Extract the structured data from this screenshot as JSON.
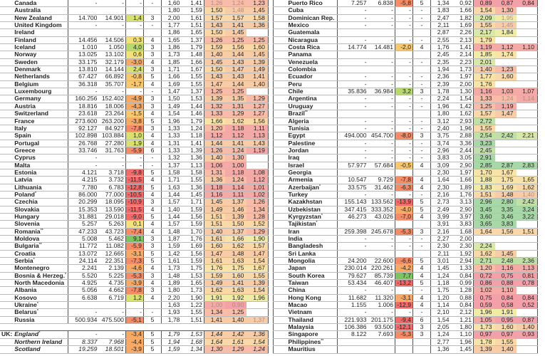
{
  "colors": {
    "strong_neg": "#f26b6b",
    "neg": "#f48c68",
    "mild_neg": "#f7aa66",
    "near_zero": "#f3e27a",
    "pos": "#d8e070",
    "strong_pos": "#7cc460",
    "low_tfr": "#f4a0a8",
    "mid_tfr": "#fad8a8",
    "high_tfr": "#a8d8a8"
  },
  "left": [
    [
      "",
      "Canada",
      "",
      "-",
      "-",
      "-",
      "-",
      "1,60",
      "1,41",
      "1,26",
      "1,24",
      "1,23",
      [
        9,
        10
      ]
    ],
    [
      "",
      "Australia",
      "",
      "",
      "",
      "",
      "",
      "1,80",
      "1,59",
      "1,50",
      "1,48",
      "1,45",
      [
        10
      ]
    ],
    [
      "",
      "New Zealand",
      "",
      "14.700",
      "14.901",
      "1,4",
      "3",
      "2,00",
      "1,61",
      "1,57",
      "1,57",
      "1,58",
      []
    ],
    [
      "",
      "United Kingdom",
      "",
      "-",
      "-",
      "-",
      "-",
      "1,77",
      "1,51",
      "1,43",
      "1,41",
      "1,36",
      []
    ],
    [
      "",
      "Ireland",
      "",
      "",
      "",
      "",
      "",
      "1,86",
      "1,65",
      "1,50",
      "1,45",
      "",
      []
    ],
    [
      "",
      "Finland",
      "",
      "14.456",
      "14.506",
      "0,3",
      "4",
      "1,65",
      "1,37",
      "1,26",
      "1,25",
      "1,25",
      []
    ],
    [
      "",
      "Iceland",
      "",
      "1.010",
      "1.050",
      "4,0",
      "3",
      "1,86",
      "1,79",
      "1,59",
      "1,56",
      "1,60",
      []
    ],
    [
      "",
      "Norway",
      "",
      "13.025",
      "13.102",
      "0,6",
      "3",
      "1,73",
      "1,48",
      "1,40",
      "1,44",
      "1,45",
      []
    ],
    [
      "",
      "Sweden",
      "",
      "33.175",
      "32.179",
      "-3,0",
      "4",
      "1,85",
      "1,66",
      "1,45",
      "1,43",
      "1,39",
      []
    ],
    [
      "",
      "Denmark",
      "",
      "13.810",
      "14.144",
      "2,4",
      "3",
      "1,71",
      "1,67",
      "1,50",
      "1,47",
      "1,49",
      []
    ],
    [
      "",
      "Netherlands",
      "",
      "67.427",
      "66.892",
      "-0,8",
      "5",
      "1,66",
      "1,55",
      "1,43",
      "1,43",
      "1,41",
      []
    ],
    [
      "",
      "Belgium",
      "",
      "36.318",
      "35.707",
      "-1,7",
      "4",
      "1,69",
      "1,55",
      "1,47",
      "1,44",
      "1,40",
      []
    ],
    [
      "",
      "Luxembourg",
      "",
      "-",
      "-",
      "-",
      "-",
      "1,47",
      "1,37",
      "1,25",
      "1,25",
      "",
      []
    ],
    [
      "",
      "Germany",
      "",
      "160.256",
      "152.402",
      "-4,9",
      "3",
      "1,50",
      "1,53",
      "1,39",
      "1,35",
      "1,29",
      []
    ],
    [
      "",
      "Austria",
      "",
      "18.816",
      "18.006",
      "-4,3",
      "3",
      "1,49",
      "1,44",
      "1,32",
      "1,31",
      "1,27",
      []
    ],
    [
      "",
      "Switzerland",
      "",
      "23.618",
      "23.264",
      "-1,5",
      "4",
      "1,54",
      "1,46",
      "1,33",
      "1,29",
      "1,27",
      []
    ],
    [
      "",
      "France",
      "",
      "273.600",
      "263.200",
      "-3,8",
      "5",
      "1,96",
      "1,79",
      "1,66",
      "1,62",
      "1,56",
      []
    ],
    [
      "",
      "Italy",
      "",
      "92.127",
      "84.927",
      "-7,8",
      "3",
      "1,33",
      "1,24",
      "1,20",
      "1,18",
      "1,11",
      []
    ],
    [
      "",
      "Spain",
      "",
      "102.898",
      "103.884",
      "1,0",
      "4",
      "1,33",
      "1,18",
      "1,12",
      "1,12",
      "1,13",
      []
    ],
    [
      "",
      "Portugal",
      "",
      "26.768",
      "27.280",
      "1,9",
      "4",
      "1,31",
      "1,41",
      "1,44",
      "1,41",
      "1,43",
      []
    ],
    [
      "",
      "Greece",
      "",
      "33.746",
      "31.763",
      "-5,9",
      "6",
      "1,33",
      "1,39",
      "1,26",
      "1,24",
      "1,19",
      []
    ],
    [
      "",
      "Cyprus",
      "",
      "-",
      "-",
      "-",
      "-",
      "1,32",
      "1,36",
      "1,40",
      "1,30",
      "",
      []
    ],
    [
      "",
      "Malta",
      "",
      "-",
      "-",
      "-",
      "-",
      "1,37",
      "1,13",
      "1,06",
      "1,00",
      "",
      []
    ],
    [
      "",
      "Estonia",
      "",
      "4.121",
      "3.718",
      "-9,8",
      "5",
      "1,58",
      "1,58",
      "1,31",
      "1,18",
      "1,08",
      []
    ],
    [
      "",
      "Latvia",
      "",
      "4.215",
      "3.732",
      "-11,5",
      "4",
      "1,71",
      "1,55",
      "1,36",
      "1,24",
      "1,12",
      []
    ],
    [
      "",
      "Lithuania",
      "",
      "7.780",
      "6.783",
      "-12,8",
      "5",
      "1,63",
      "1,36",
      "1,18",
      "1,14",
      "1,01",
      []
    ],
    [
      "",
      "Poland",
      "°",
      "86.000",
      "77.000",
      "-10,5",
      "4",
      "1,44",
      "1,45",
      "1,16",
      "1,11",
      "1,02",
      []
    ],
    [
      "",
      "Czechia",
      "",
      "20.299",
      "18.095",
      "-10,9",
      "3",
      "1,57",
      "1,71",
      "1,45",
      "1,37",
      "1,26",
      []
    ],
    [
      "",
      "Slovakia",
      "",
      "15.353",
      "13.590",
      "-11,5",
      "4",
      "1,40",
      "1,59",
      "1,49",
      "1,46",
      "1,34",
      []
    ],
    [
      "",
      "Hungary",
      "",
      "31.881",
      "29.018",
      "-9,0",
      "5",
      "1,44",
      "1,56",
      "1,51",
      "1,39",
      "1,28",
      []
    ],
    [
      "",
      "Slovenia",
      "",
      "5.257",
      "5.263",
      "0,1",
      "4",
      "1,57",
      "1,59",
      "1,51",
      "1,50",
      "1,52",
      []
    ],
    [
      "",
      "Romania",
      "°°",
      "47.233",
      "43.723",
      "-7,4",
      "4",
      "1,48",
      "1,70",
      "1,40",
      "1,37",
      "1,29",
      []
    ],
    [
      "",
      "Moldova",
      "",
      "5.008",
      "5.462",
      "9,1",
      "3",
      "1,87",
      "1,76",
      "1,61",
      "1,66",
      "1,90",
      []
    ],
    [
      "",
      "Bulgaria",
      "°°",
      "11.772",
      "11.082",
      "-5,9",
      "3",
      "1,59",
      "1,69",
      "1,60",
      "1,62",
      "1,57",
      []
    ],
    [
      "",
      "Croatia",
      "",
      "13.072",
      "12.665",
      "-3,1",
      "5",
      "1,42",
      "1,56",
      "1,47",
      "1,48",
      "1,47",
      []
    ],
    [
      "",
      "Serbia",
      "°",
      "24.114",
      "22.351",
      "-7,3",
      "5",
      "1,61",
      "1,59",
      "1,61",
      "1,63",
      "1,54",
      []
    ],
    [
      "",
      "Montenegro",
      "",
      "2.241",
      "2.139",
      "-4,6",
      "4",
      "1,73",
      "1,75",
      "1,76",
      "1,75",
      "1,67",
      []
    ],
    [
      "",
      "Bosnia & Herzeg.",
      "°",
      "5.520",
      "5.225",
      "-5,3",
      "3",
      "1,48",
      "1,53",
      "1,59",
      "1,60",
      "1,55",
      []
    ],
    [
      "",
      "North Macedonia",
      "",
      "4.925",
      "4.735",
      "-3,9",
      "4",
      "1,89",
      "1,65",
      "1,49",
      "1,41",
      "1,39",
      []
    ],
    [
      "",
      "Albania",
      "",
      "5.056",
      "4.662",
      "-7,8",
      "3",
      "1,80",
      "1,73",
      "1,62",
      "1,63",
      "1,54",
      []
    ],
    [
      "",
      "Kosovo",
      "",
      "6.638",
      "6.719",
      "1,2",
      "4",
      "2,20",
      "1,90",
      "1,91",
      "1,92",
      "1,96",
      []
    ],
    [
      "",
      "Ukraine",
      "°",
      "",
      "",
      "",
      "",
      "1,63",
      "1,22",
      "1,00",
      "0,90",
      "",
      [
        9,
        10
      ]
    ],
    [
      "",
      "Belarus",
      "°",
      "-",
      "-",
      "-",
      "-",
      "1,93",
      "1,55",
      "1,34",
      "1,25",
      "",
      []
    ],
    [
      "",
      "Russia",
      "",
      "500.934",
      "475.500",
      "-5,1",
      "5",
      "1,78",
      "1,51",
      "1,41",
      "1,40",
      "1,37",
      [
        11
      ]
    ],
    null,
    [
      "UK:",
      "England",
      "°",
      "-",
      "-",
      "-3,4",
      "5",
      "1,79",
      "1,53",
      "1,44",
      "1,42",
      "1,36",
      [],
      true
    ],
    [
      "",
      "Northern Ireland",
      "",
      "8.337",
      "7.968",
      "-4,4",
      "5",
      "1,94",
      "1,68",
      "1,64",
      "1,61",
      "1,54",
      [],
      true
    ],
    [
      "",
      "Scotland",
      "",
      "19.259",
      "18.501",
      "-3,9",
      "5",
      "1,59",
      "1,34",
      "1,30",
      "1,29",
      "1,24",
      [],
      true
    ]
  ],
  "right": [
    [
      "",
      "Puerto Rico",
      "",
      "7.257",
      "6.838",
      "-5,8",
      "5",
      "1,34",
      "0,92",
      "0,89",
      "0,87",
      "0,84",
      []
    ],
    [
      "",
      "Cuba",
      "",
      "-",
      "-",
      "-",
      "-",
      "1,83",
      "1,66",
      "1,54",
      "1,30",
      "",
      []
    ],
    [
      "",
      "Dominican Rep.",
      "",
      "-",
      "-",
      "-",
      "-",
      "2,47",
      "1,82",
      "2,09",
      "1,95",
      "",
      [
        10
      ]
    ],
    [
      "",
      "Mexico",
      "",
      "-",
      "-",
      "-",
      "-",
      "2,11",
      "1,69",
      "1,55",
      "1,45",
      "",
      [
        10
      ]
    ],
    [
      "",
      "Guatemala",
      "",
      "",
      "",
      "",
      "",
      "2,87",
      "2,26",
      "2,17",
      "1,84",
      "",
      []
    ],
    [
      "",
      "Nicaragua",
      "",
      "-",
      "-",
      "-",
      "-",
      "2,55",
      "2,13",
      "1,79",
      "",
      "",
      []
    ],
    [
      "",
      "Costa Rica",
      "",
      "14.774",
      "14.481",
      "-2,0",
      "4",
      "1,76",
      "1,41",
      "1,19",
      "1,12",
      "1,10",
      []
    ],
    [
      "",
      "Panama",
      "",
      "",
      "",
      "",
      "",
      "2,45",
      "2,14",
      "1,85",
      "1,74",
      "",
      []
    ],
    [
      "",
      "Venezuela",
      "",
      "-",
      "-",
      "-",
      "-",
      "2,35",
      "2,23",
      "2,01",
      "",
      "",
      []
    ],
    [
      "",
      "Colombia",
      "",
      "",
      "",
      "",
      "",
      "1,94",
      "1,73",
      "1,40",
      "1,23",
      "",
      []
    ],
    [
      "",
      "Ecuador",
      "",
      "-",
      "-",
      "-",
      "-",
      "2,36",
      "1,97",
      "1,77",
      "1,60",
      "",
      []
    ],
    [
      "",
      "Peru",
      "",
      "-",
      "-",
      "-",
      "-",
      "2,39",
      "2,00",
      "1,76",
      "",
      "",
      []
    ],
    [
      "",
      "Chile",
      "",
      "35.836",
      "36.984",
      "3,2",
      "3",
      "1,78",
      "1,30",
      "1,16",
      "1,03",
      "1,07",
      []
    ],
    [
      "",
      "Argentina",
      "",
      "-",
      "-",
      "-",
      "-",
      "2,24",
      "1,54",
      "1,33",
      "1,24",
      "1,14",
      [
        10,
        11
      ]
    ],
    [
      "",
      "Uruguay",
      "",
      "-",
      "-",
      "-",
      "-",
      "1,96",
      "1,42",
      "1,25",
      "1,19",
      "",
      []
    ],
    [
      "",
      "Brazil",
      "°°",
      "",
      "",
      "",
      "",
      "1,80",
      "1,62",
      "1,57",
      "1,47",
      "",
      []
    ],
    [
      "",
      "Algeria",
      "",
      "-",
      "-",
      "-",
      "-",
      "3,12",
      "2,93",
      "2,72",
      "",
      "",
      []
    ],
    [
      "",
      "Tunisia",
      "",
      "-",
      "-",
      "-",
      "-",
      "2,40",
      "1,96",
      "1,55",
      "",
      "",
      []
    ],
    [
      "",
      "Egypt",
      "",
      "494.000",
      "454.700",
      "-8,0",
      "3",
      "3,75",
      "2,88",
      "2,54",
      "2,42",
      "2,21",
      []
    ],
    [
      "",
      "Palestine",
      "",
      "-",
      "-",
      "-",
      "-",
      "3,74",
      "3,36",
      "3,23",
      "",
      "",
      []
    ],
    [
      "",
      "Jordan",
      "",
      "-",
      "-",
      "-",
      "-",
      "2,96",
      "2,44",
      "2,45",
      "",
      "",
      []
    ],
    [
      "",
      "Iraq",
      "",
      "-",
      "-",
      "-",
      "-",
      "3,83",
      "3,05",
      "2,91",
      "",
      "",
      []
    ],
    [
      "",
      "Israel",
      "",
      "57.977",
      "57.684",
      "-0,5",
      "4",
      "3,09",
      "2,90",
      "2,85",
      "2,87",
      "2,83",
      []
    ],
    [
      "",
      "Georgia",
      "",
      "",
      "",
      "",
      "",
      "2,30",
      "1,97",
      "1,70",
      "1,67",
      "",
      []
    ],
    [
      "",
      "Armenia",
      "",
      "10.547",
      "9.729",
      "-7,8",
      "4",
      "1,64",
      "1,66",
      "1,88",
      "1,75",
      "1,65",
      []
    ],
    [
      "",
      "Azerbaijan",
      "°",
      "33.575",
      "31.462",
      "-6,3",
      "4",
      "2,30",
      "1,89",
      "1,83",
      "1,69",
      "1,62",
      []
    ],
    [
      "",
      "Turkey",
      "",
      "-",
      "-",
      "-",
      "-",
      "2,16",
      "1,76",
      "1,51",
      "1,48",
      "1,40",
      [
        11
      ]
    ],
    [
      "",
      "Kazakhstan",
      "",
      "155.143",
      "133.562",
      "-13,9",
      "5",
      "2,73",
      "3,13",
      "2,96",
      "2,80",
      "2,42",
      []
    ],
    [
      "",
      "Uzbekistan",
      "",
      "347.415",
      "333.352",
      "-4,0",
      "5",
      "2,49",
      "2,90",
      "3,45",
      "3,35",
      "3,24",
      []
    ],
    [
      "",
      "Kyrgyzstan",
      "°",
      "46.273",
      "43.026",
      "-7,0",
      "4",
      "3,99",
      "3,97",
      "3,60",
      "3,46",
      "3,22",
      []
    ],
    [
      "",
      "Tajikistan",
      "°",
      "",
      "",
      "",
      "",
      "3,91",
      "3,83",
      "3,65",
      "3,83",
      "",
      []
    ],
    [
      "",
      "Iran",
      "",
      "259.398",
      "245.678",
      "-5,3",
      "3",
      "2,16",
      "1,68",
      "1,64",
      "1,56",
      "1,51",
      []
    ],
    [
      "",
      "India",
      "",
      "-",
      "-",
      "-",
      "-",
      "2,27",
      "2,00",
      "",
      "",
      "",
      []
    ],
    [
      "",
      "Bangladesh",
      "",
      "-",
      "-",
      "-",
      "-",
      "2,30",
      "2,30",
      "2,24",
      "",
      "",
      []
    ],
    [
      "",
      "Sri Lanka",
      "",
      "",
      "",
      "",
      "",
      "2,11",
      "1,92",
      "1,62",
      "1,45",
      "",
      []
    ],
    [
      "",
      "Mongolia",
      "",
      "24.200",
      "22.600",
      "-6,6",
      "5",
      "3,01",
      "2,94",
      "2,71",
      "2,48",
      "2,36",
      []
    ],
    [
      "",
      "Japan",
      "",
      "230.014",
      "220.261",
      "-4,2",
      "4",
      "1,45",
      "1,33",
      "1,20",
      "1,16",
      "1,13",
      []
    ],
    [
      "",
      "South Korea",
      "",
      "79.627",
      "85.739",
      "7,7",
      "4",
      "1,24",
      "0,84",
      "0,72",
      "0,75",
      "0,81",
      []
    ],
    [
      "",
      "Taiwan",
      "",
      "53.434",
      "46.407",
      "-13,2",
      "5",
      "1,18",
      "0,99",
      "0,86",
      "0,88",
      "0,78",
      []
    ],
    [
      "",
      "China",
      "",
      "-",
      "-",
      "-",
      "-",
      "1,75",
      "1,28",
      "1,02",
      "1,10",
      "",
      []
    ],
    [
      "",
      "Hong Kong",
      "",
      "11.682",
      "11.320",
      "-3,1",
      "4",
      "1,20",
      "0,88",
      "0,75",
      "0,84",
      "0,84",
      []
    ],
    [
      "",
      "Macao",
      "",
      "1.155",
      "1.006",
      "-12,9",
      "4",
      "1,14",
      "0,84",
      "0,59",
      "0,58",
      "0,52",
      []
    ],
    [
      "",
      "Vietnam",
      "",
      "-",
      "-",
      "-",
      "-",
      "2,10",
      "2,12",
      "1,96",
      "1,91",
      "",
      []
    ],
    [
      "",
      "Thailand",
      "",
      "221.933",
      "201.175",
      "-9,4",
      "6",
      "1,54",
      "1,21",
      "1,05",
      "0,95",
      "0,87",
      []
    ],
    [
      "",
      "Malaysia",
      "",
      "106.386",
      "93.500",
      "-12,1",
      "3",
      "2,05",
      "1,80",
      "1,73",
      "1,60",
      "1,40",
      []
    ],
    [
      "",
      "Singapore",
      "",
      "8.122",
      "7.693",
      "-5,3",
      "3",
      "1,24",
      "1,10",
      "0,97",
      "0,97",
      "0,93",
      []
    ],
    [
      "",
      "Philippines",
      "°°",
      "",
      "",
      "",
      "",
      "2,77",
      "1,96",
      "1,78",
      "1,55",
      "",
      []
    ],
    [
      "",
      "Mauritius",
      "",
      "",
      "",
      "",
      "",
      "1,36",
      "1,45",
      "1,39",
      "1,40",
      "",
      []
    ]
  ]
}
